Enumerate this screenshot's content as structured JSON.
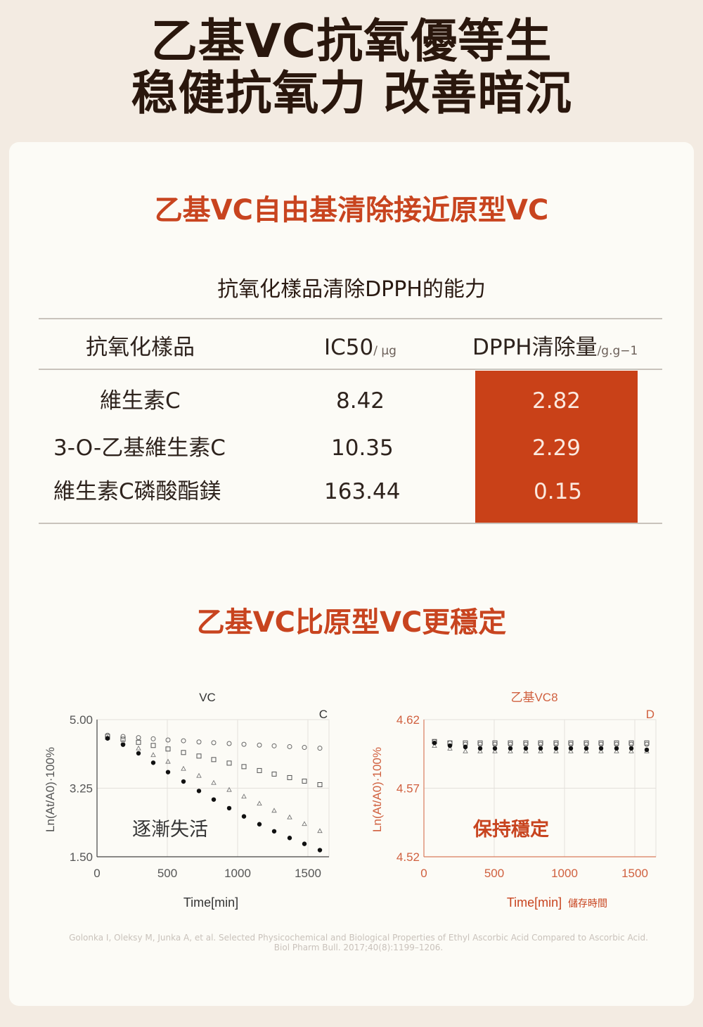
{
  "headline": {
    "line1": "乙基VC抗氧優等生",
    "line2": "稳健抗氧力 改善暗沉"
  },
  "section1": {
    "title": "乙基VC自由基清除接近原型VC",
    "table_title": "抗氧化樣品清除DPPH的能力",
    "headers": {
      "sample": "抗氧化樣品",
      "ic50": "IC50",
      "ic50_unit": "/ μg",
      "dpph": "DPPH清除量",
      "dpph_unit": "/g.g−1"
    },
    "rows": [
      {
        "sample": "維生素C",
        "ic50": "8.42",
        "dpph": "2.82"
      },
      {
        "sample": "3-O-乙基維生素C",
        "ic50": "10.35",
        "dpph": "2.29"
      },
      {
        "sample": "維生素C磷酸酯鎂",
        "ic50": "163.44",
        "dpph": "0.15"
      }
    ]
  },
  "section2": {
    "title": "乙基VC比原型VC更穩定"
  },
  "colors": {
    "accent": "#c8441f",
    "highlight": "#c94118",
    "headline": "#2a170d"
  },
  "chart_data": [
    {
      "type": "scatter",
      "title": "VC",
      "panel_letter": "C",
      "annotation": "逐漸失活",
      "xlabel": "Time[min]",
      "ylabel": "Ln(At/A0)·100%",
      "xlim": [
        0,
        1650
      ],
      "ylim": [
        1.5,
        5.0
      ],
      "yticks": [
        "5.00",
        "3.25",
        "1.50"
      ],
      "xticks": [
        "0",
        "500",
        "1000",
        "1500"
      ],
      "grid": true,
      "x": [
        75,
        185,
        295,
        400,
        505,
        615,
        725,
        830,
        940,
        1045,
        1155,
        1260,
        1370,
        1475,
        1585
      ],
      "series": [
        {
          "marker": "circle-open",
          "values": [
            4.6,
            4.57,
            4.54,
            4.51,
            4.48,
            4.46,
            4.43,
            4.41,
            4.39,
            4.37,
            4.35,
            4.33,
            4.31,
            4.29,
            4.27
          ]
        },
        {
          "marker": "square-open",
          "values": [
            4.57,
            4.5,
            4.42,
            4.34,
            4.25,
            4.16,
            4.07,
            3.98,
            3.89,
            3.8,
            3.7,
            3.61,
            3.52,
            3.43,
            3.34
          ]
        },
        {
          "marker": "triangle-open",
          "values": [
            4.54,
            4.42,
            4.27,
            4.1,
            3.93,
            3.75,
            3.57,
            3.39,
            3.21,
            3.04,
            2.86,
            2.68,
            2.51,
            2.34,
            2.16
          ]
        },
        {
          "marker": "dot-filled",
          "values": [
            4.52,
            4.36,
            4.14,
            3.9,
            3.66,
            3.42,
            3.18,
            2.96,
            2.74,
            2.53,
            2.33,
            2.15,
            1.98,
            1.83,
            1.67
          ]
        }
      ]
    },
    {
      "type": "scatter",
      "title": "乙基VC8",
      "panel_letter": "D",
      "annotation": "保持穩定",
      "xlabel": "Time[min]",
      "xlabel_note": "儲存時間",
      "ylabel": "Ln(At/A0)·100%",
      "xlim": [
        0,
        1650
      ],
      "ylim": [
        4.52,
        4.62
      ],
      "yticks": [
        "4.62",
        "4.57",
        "4.52"
      ],
      "xticks": [
        "0",
        "500",
        "1000",
        "1500"
      ],
      "grid": true,
      "x": [
        75,
        185,
        295,
        400,
        505,
        615,
        725,
        830,
        940,
        1045,
        1155,
        1260,
        1370,
        1475,
        1585
      ],
      "series": [
        {
          "marker": "circle-open",
          "values": [
            4.604,
            4.603,
            4.602,
            4.602,
            4.602,
            4.602,
            4.602,
            4.602,
            4.602,
            4.602,
            4.602,
            4.602,
            4.602,
            4.602,
            4.602
          ]
        },
        {
          "marker": "square-open",
          "values": [
            4.604,
            4.603,
            4.603,
            4.603,
            4.603,
            4.603,
            4.603,
            4.603,
            4.603,
            4.603,
            4.603,
            4.603,
            4.603,
            4.603,
            4.603
          ]
        },
        {
          "marker": "triangle-open",
          "values": [
            4.601,
            4.599,
            4.597,
            4.597,
            4.597,
            4.597,
            4.597,
            4.597,
            4.597,
            4.597,
            4.597,
            4.597,
            4.597,
            4.597,
            4.597
          ]
        },
        {
          "marker": "dot-filled",
          "values": [
            4.603,
            4.601,
            4.6,
            4.599,
            4.599,
            4.599,
            4.599,
            4.599,
            4.599,
            4.599,
            4.599,
            4.599,
            4.599,
            4.599,
            4.598
          ]
        }
      ]
    }
  ],
  "source": {
    "line1": "Golonka I, Oleksy M, Junka A, et al. Selected Physicochemical and Biological Properties of Ethyl Ascorbic Acid Compared to Ascorbic Acid.",
    "line2": "Biol Pharm Bull. 2017;40(8):1199–1206."
  }
}
